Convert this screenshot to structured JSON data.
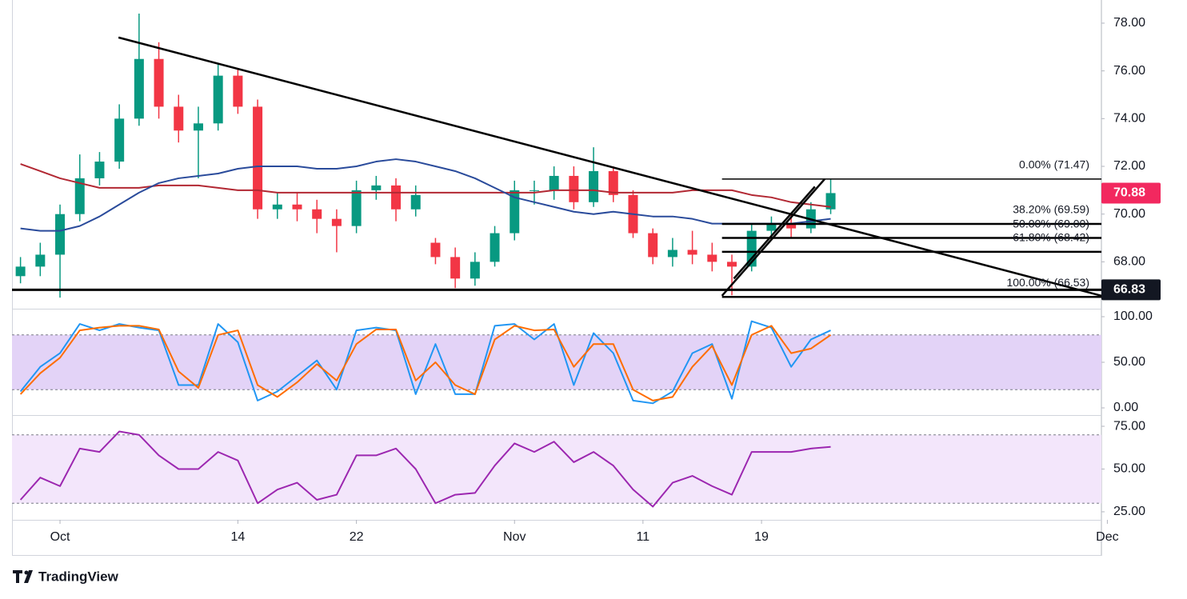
{
  "brand": "TradingView",
  "chart_data": [
    {
      "type": "candlestick",
      "xlim": [
        -2.43,
        52.7
      ],
      "x": [
        -2,
        -1,
        0,
        1,
        2,
        3,
        4,
        5,
        6,
        7,
        8,
        9,
        10,
        11,
        12,
        13,
        14,
        15,
        16,
        17,
        18,
        19,
        20,
        21,
        22,
        23,
        24,
        25,
        26,
        27,
        28,
        29,
        30,
        31,
        32,
        33,
        34,
        35,
        36,
        37,
        38,
        39
      ],
      "open": [
        67.4,
        67.8,
        68.3,
        70.0,
        71.5,
        72.2,
        74.0,
        76.5,
        74.5,
        73.5,
        73.8,
        75.8,
        74.5,
        70.2,
        70.4,
        70.2,
        69.8,
        69.5,
        71.0,
        71.2,
        70.2,
        68.8,
        68.2,
        67.3,
        68.0,
        69.2,
        71.0,
        71.0,
        71.6,
        70.5,
        71.8,
        70.8,
        69.2,
        68.2,
        68.5,
        68.3,
        68.0,
        67.8,
        69.3,
        69.6,
        69.4,
        70.2
      ],
      "high": [
        68.2,
        68.8,
        70.4,
        72.5,
        72.6,
        74.6,
        78.4,
        77.2,
        75.0,
        74.5,
        76.3,
        76.1,
        74.8,
        70.9,
        70.9,
        70.6,
        70.2,
        71.4,
        71.6,
        71.5,
        71.2,
        69.0,
        68.6,
        68.4,
        69.5,
        71.4,
        71.4,
        72.0,
        72.0,
        72.8,
        72.0,
        71.0,
        69.4,
        69.0,
        69.3,
        68.8,
        68.3,
        69.6,
        69.9,
        70.0,
        70.5,
        71.47
      ],
      "low": [
        67.1,
        67.4,
        66.5,
        69.7,
        71.2,
        71.9,
        73.7,
        74.0,
        73.0,
        71.5,
        73.5,
        74.2,
        69.8,
        69.8,
        69.7,
        69.2,
        68.4,
        69.2,
        70.6,
        69.7,
        69.9,
        67.9,
        66.9,
        67.0,
        67.8,
        68.9,
        70.4,
        70.6,
        70.2,
        70.3,
        70.5,
        69.0,
        67.9,
        67.8,
        67.9,
        67.6,
        66.6,
        67.6,
        69.0,
        69.0,
        69.2,
        70.0
      ],
      "close": [
        67.8,
        68.3,
        70.0,
        71.5,
        72.2,
        74.0,
        76.5,
        74.5,
        73.5,
        73.8,
        75.8,
        74.5,
        70.2,
        70.4,
        70.2,
        69.8,
        69.5,
        71.0,
        71.2,
        70.2,
        70.8,
        68.2,
        67.3,
        68.0,
        69.2,
        71.0,
        71.0,
        71.6,
        70.5,
        71.8,
        70.8,
        69.2,
        68.2,
        68.5,
        68.3,
        68.0,
        67.8,
        69.3,
        69.6,
        69.4,
        70.2,
        70.88
      ],
      "up_color": "#089981",
      "down_color": "#f23645",
      "series": [
        {
          "color": "#b22833",
          "values": [
            72.1,
            71.8,
            71.5,
            71.3,
            71.1,
            71.1,
            71.1,
            71.2,
            71.2,
            71.2,
            71.1,
            71.0,
            71.0,
            70.9,
            70.9,
            70.9,
            70.9,
            70.9,
            70.9,
            70.9,
            70.9,
            70.9,
            70.9,
            70.9,
            70.9,
            70.9,
            70.9,
            71.0,
            71.0,
            71.0,
            70.9,
            70.9,
            70.9,
            70.9,
            71.0,
            71.0,
            71.0,
            70.8,
            70.7,
            70.5,
            70.4,
            70.3
          ]
        },
        {
          "color": "#2a4b9b",
          "values": [
            69.4,
            69.3,
            69.3,
            69.5,
            69.9,
            70.4,
            70.9,
            71.3,
            71.5,
            71.6,
            71.7,
            71.9,
            72.0,
            72.0,
            72.0,
            71.9,
            71.9,
            72.0,
            72.2,
            72.3,
            72.2,
            72.0,
            71.8,
            71.5,
            71.1,
            70.7,
            70.5,
            70.3,
            70.1,
            70.0,
            70.1,
            70.0,
            69.9,
            69.9,
            69.8,
            69.6,
            69.6,
            69.6,
            69.6,
            69.6,
            69.7,
            69.8
          ]
        }
      ],
      "ylim": [
        66.07,
        78.97
      ],
      "yticks": [
        {
          "value": 78,
          "label": "78.00"
        },
        {
          "value": 76,
          "label": "76.00"
        },
        {
          "value": 74,
          "label": "74.00"
        },
        {
          "value": 72,
          "label": "72.00"
        },
        {
          "value": 70,
          "label": "70.00"
        },
        {
          "value": 68,
          "label": "68.00"
        }
      ],
      "trendlines": [
        [
          [
            2.96,
            77.4
          ],
          [
            52.7,
            66.58
          ]
        ],
        [
          [
            33.5,
            66.58
          ],
          [
            38.7,
            71.47
          ]
        ],
        [
          [
            34.1,
            67.3
          ],
          [
            38.2,
            71.15
          ]
        ]
      ],
      "support": 66.83,
      "fib_start": 33.5,
      "fib": [
        {
          "value": 71.47,
          "label": "0.00% (71.47)"
        },
        {
          "value": 69.59,
          "label": "38.20% (69.59)"
        },
        {
          "value": 69.0,
          "label": "50.00% (69.00)"
        },
        {
          "value": 68.42,
          "label": "61.80% (68.42)"
        },
        {
          "value": 66.53,
          "label": "100.00% (66.53)"
        }
      ],
      "price_labels": [
        {
          "value": 70.88,
          "label": "70.88",
          "color": "#f2285f"
        },
        {
          "value": 66.83,
          "label": "66.83",
          "color": "#131722"
        }
      ]
    },
    {
      "type": "line",
      "xlim": [
        -2.43,
        52.7
      ],
      "x": [
        -2,
        -1,
        0,
        1,
        2,
        3,
        4,
        5,
        6,
        7,
        8,
        9,
        10,
        11,
        12,
        13,
        14,
        15,
        16,
        17,
        18,
        19,
        20,
        21,
        22,
        23,
        24,
        25,
        26,
        27,
        28,
        29,
        30,
        31,
        32,
        33,
        34,
        35,
        36,
        37,
        38,
        39
      ],
      "series": [
        {
          "color": "#2196f3",
          "values": [
            18,
            45,
            60,
            92,
            85,
            92,
            88,
            85,
            25,
            25,
            92,
            72,
            8,
            18,
            35,
            52,
            20,
            85,
            88,
            85,
            15,
            70,
            15,
            15,
            90,
            92,
            75,
            92,
            25,
            82,
            60,
            8,
            5,
            18,
            60,
            70,
            10,
            95,
            88,
            45,
            75,
            85
          ]
        },
        {
          "color": "#ff6d00",
          "values": [
            15,
            38,
            55,
            85,
            88,
            90,
            90,
            86,
            40,
            22,
            80,
            85,
            25,
            12,
            28,
            48,
            30,
            70,
            86,
            86,
            30,
            50,
            25,
            15,
            75,
            90,
            85,
            86,
            45,
            70,
            70,
            20,
            8,
            12,
            45,
            68,
            25,
            80,
            90,
            60,
            65,
            80
          ]
        }
      ],
      "band": [
        20,
        80
      ],
      "band_color": "#e3d3f7",
      "ylim": [
        -7,
        107
      ],
      "yticks": [
        {
          "value": 100,
          "label": "100.00"
        },
        {
          "value": 50,
          "label": "50.00"
        },
        {
          "value": 0,
          "label": "0.00"
        }
      ]
    },
    {
      "type": "line",
      "xlim": [
        -2.43,
        52.7
      ],
      "x": [
        -2,
        -1,
        0,
        1,
        2,
        3,
        4,
        5,
        6,
        7,
        8,
        9,
        10,
        11,
        12,
        13,
        14,
        15,
        16,
        17,
        18,
        19,
        20,
        21,
        22,
        23,
        24,
        25,
        26,
        27,
        28,
        29,
        30,
        31,
        32,
        33,
        34,
        35,
        36,
        37,
        38,
        39
      ],
      "series": [
        {
          "color": "#9c27b0",
          "values": [
            32,
            45,
            40,
            62,
            60,
            72,
            70,
            58,
            50,
            50,
            60,
            55,
            30,
            38,
            42,
            32,
            35,
            58,
            58,
            62,
            50,
            30,
            35,
            36,
            52,
            65,
            60,
            66,
            54,
            60,
            52,
            38,
            28,
            42,
            46,
            40,
            35,
            60,
            60,
            60,
            62,
            63
          ]
        }
      ],
      "band": [
        30,
        70
      ],
      "band_color": "#f3e6fb",
      "ylim": [
        20.3,
        81.1
      ],
      "yticks": [
        {
          "value": 75,
          "label": "75.00"
        },
        {
          "value": 50,
          "label": "50.00"
        },
        {
          "value": 25,
          "label": "25.00"
        }
      ],
      "xticks": [
        {
          "value": 0,
          "label": "Oct"
        },
        {
          "value": 9,
          "label": "14"
        },
        {
          "value": 15,
          "label": "22"
        },
        {
          "value": 23,
          "label": "Nov"
        },
        {
          "value": 29.5,
          "label": "11"
        },
        {
          "value": 35.5,
          "label": "19"
        },
        {
          "value": 53,
          "label": "Dec"
        }
      ]
    }
  ]
}
